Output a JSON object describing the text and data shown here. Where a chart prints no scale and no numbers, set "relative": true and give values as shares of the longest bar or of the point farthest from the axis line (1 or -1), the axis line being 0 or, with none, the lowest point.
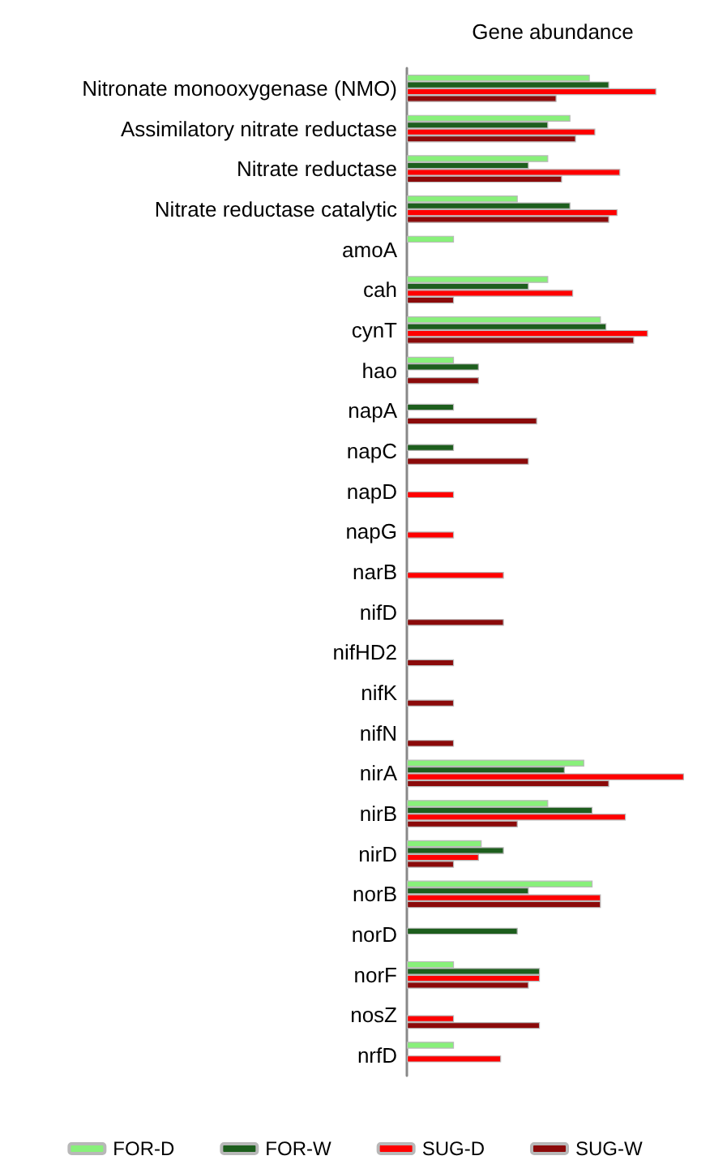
{
  "chart_data": {
    "type": "bar",
    "orientation": "horizontal",
    "relative": true,
    "xlabel": "Gene abundance",
    "categories": [
      "Nitronate monooxygenase (NMO)",
      "Assimilatory nitrate reductase",
      "Nitrate reductase",
      "Nitrate reductase catalytic",
      "amoA",
      "cah",
      "cynT",
      "hao",
      "napA",
      "napC",
      "napD",
      "napG",
      "narB",
      "nifD",
      "nifHD2",
      "nifK",
      "nifN",
      "nirA",
      "nirB",
      "nirD",
      "norB",
      "norD",
      "norF",
      "nosZ",
      "nrfD"
    ],
    "series": [
      {
        "name": "FOR-D",
        "color": "#88f07a",
        "values": [
          0.66,
          0.59,
          0.51,
          0.4,
          0.17,
          0.51,
          0.7,
          0.17,
          null,
          null,
          null,
          null,
          null,
          null,
          null,
          null,
          null,
          0.64,
          0.51,
          0.27,
          0.67,
          null,
          0.17,
          null,
          0.17
        ]
      },
      {
        "name": "FOR-W",
        "color": "#1d5e1d",
        "values": [
          0.73,
          0.51,
          0.44,
          0.59,
          null,
          0.44,
          0.72,
          0.26,
          0.17,
          0.17,
          null,
          null,
          null,
          null,
          null,
          null,
          null,
          0.57,
          0.67,
          0.35,
          0.44,
          0.4,
          0.48,
          null,
          null
        ]
      },
      {
        "name": "SUG-D",
        "color": "#ff0000",
        "values": [
          0.9,
          0.68,
          0.77,
          0.76,
          null,
          0.6,
          0.87,
          null,
          null,
          null,
          0.17,
          0.17,
          0.35,
          null,
          null,
          null,
          null,
          1.0,
          0.79,
          0.26,
          0.7,
          null,
          0.48,
          0.17,
          0.34
        ]
      },
      {
        "name": "SUG-W",
        "color": "#8b0a0a",
        "values": [
          0.54,
          0.61,
          0.56,
          0.73,
          null,
          0.17,
          0.82,
          0.26,
          0.47,
          0.44,
          null,
          null,
          null,
          0.35,
          0.17,
          0.17,
          0.17,
          0.73,
          0.4,
          0.17,
          0.7,
          null,
          0.44,
          0.48,
          null
        ]
      }
    ],
    "legend": "bottom"
  }
}
